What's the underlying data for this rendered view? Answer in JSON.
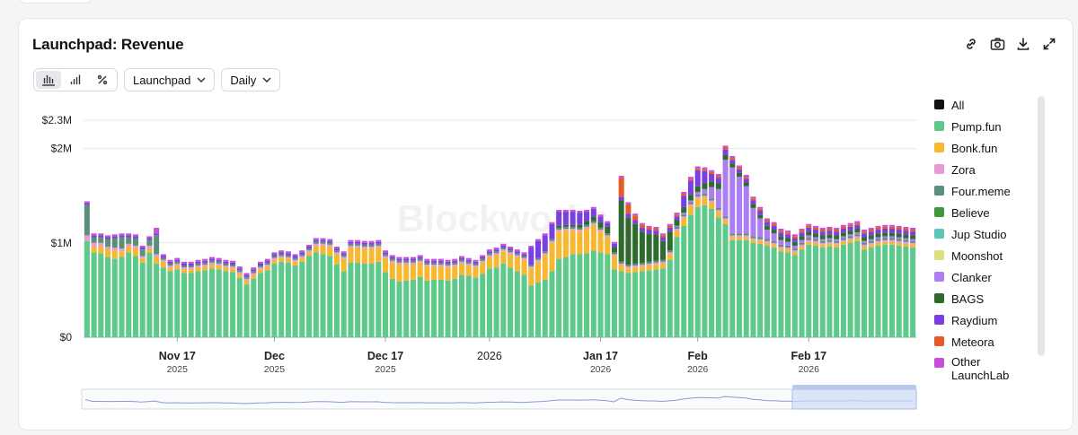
{
  "title": "Launchpad: Revenue",
  "watermark": "Blockworks",
  "actions": [
    {
      "name": "link-icon"
    },
    {
      "name": "camera-icon"
    },
    {
      "name": "download-icon"
    },
    {
      "name": "expand-icon"
    }
  ],
  "view_toggles": [
    {
      "name": "bar-stacked-icon",
      "active": true
    },
    {
      "name": "bar-icon",
      "active": false
    },
    {
      "name": "percent-icon",
      "active": false
    }
  ],
  "dropdowns": {
    "group": "Launchpad",
    "interval": "Daily"
  },
  "colors": {
    "pump": "#5dc98b",
    "bonk": "#f7b731",
    "zora": "#e79ad6",
    "four": "#5b8f79",
    "believe": "#3f9a3f",
    "jup": "#5bc7b9",
    "moonshot": "#dde07a",
    "clanker": "#ad7df2",
    "bags": "#2f6b2f",
    "raydium": "#7a3fe0",
    "meteora": "#e55a28",
    "other": "#c84fd8"
  },
  "chart_data": {
    "type": "bar",
    "stacked": true,
    "title": "Launchpad: Revenue",
    "y_ticks": [
      "$0",
      "$1M",
      "$2M",
      "$2.3M"
    ],
    "ylim": [
      0,
      2300000
    ],
    "x_ticks": [
      {
        "label": "Nov 17",
        "sub": "2025"
      },
      {
        "label": "Dec",
        "sub": "2025"
      },
      {
        "label": "Dec 17",
        "sub": "2025"
      },
      {
        "label": "2026",
        "sub": ""
      },
      {
        "label": "Jan 17",
        "sub": "2026"
      },
      {
        "label": "Feb",
        "sub": "2026"
      },
      {
        "label": "Feb 17",
        "sub": "2026"
      }
    ],
    "x_tick_days": [
      13,
      27,
      43,
      58,
      74,
      88,
      104
    ],
    "legend": [
      {
        "label": "All",
        "color": "#111111"
      },
      {
        "label": "Pump.fun",
        "color": "#5dc98b"
      },
      {
        "label": "Bonk.fun",
        "color": "#f7b731"
      },
      {
        "label": "Zora",
        "color": "#e79ad6"
      },
      {
        "label": "Four.meme",
        "color": "#5b8f79"
      },
      {
        "label": "Believe",
        "color": "#3f9a3f"
      },
      {
        "label": "Jup Studio",
        "color": "#5bc7b9"
      },
      {
        "label": "Moonshot",
        "color": "#dde07a"
      },
      {
        "label": "Clanker",
        "color": "#ad7df2"
      },
      {
        "label": "BAGS",
        "color": "#2f6b2f"
      },
      {
        "label": "Raydium",
        "color": "#7a3fe0"
      },
      {
        "label": "Meteora",
        "color": "#e55a28"
      },
      {
        "label": "Other LaunchLab",
        "color": "#c84fd8"
      }
    ],
    "series_keys": [
      "pump",
      "bonk",
      "zora",
      "four",
      "believe",
      "clanker",
      "bags",
      "raydium",
      "meteora",
      "other"
    ],
    "pump": [
      1020000,
      900000,
      890000,
      850000,
      830000,
      850000,
      900000,
      860000,
      790000,
      900000,
      780000,
      740000,
      700000,
      720000,
      680000,
      680000,
      700000,
      710000,
      730000,
      720000,
      700000,
      690000,
      630000,
      560000,
      620000,
      680000,
      710000,
      780000,
      800000,
      790000,
      760000,
      800000,
      860000,
      900000,
      880000,
      860000,
      770000,
      700000,
      790000,
      790000,
      780000,
      780000,
      800000,
      690000,
      620000,
      590000,
      600000,
      610000,
      640000,
      600000,
      610000,
      610000,
      600000,
      620000,
      660000,
      650000,
      630000,
      670000,
      730000,
      740000,
      780000,
      740000,
      700000,
      660000,
      550000,
      580000,
      610000,
      700000,
      830000,
      850000,
      880000,
      880000,
      890000,
      920000,
      900000,
      880000,
      720000,
      700000,
      680000,
      690000,
      700000,
      710000,
      720000,
      730000,
      820000,
      1060000,
      1180000,
      1300000,
      1380000,
      1400000,
      1360000,
      1270000,
      1200000,
      1030000,
      1030000,
      1030000,
      1000000,
      990000,
      970000,
      950000,
      910000,
      900000,
      870000,
      930000,
      980000,
      970000,
      950000,
      960000,
      950000,
      980000,
      1000000,
      1020000,
      930000,
      950000,
      970000,
      980000,
      980000,
      970000,
      960000,
      950000
    ],
    "bonk": [
      0,
      60000,
      70000,
      80000,
      90000,
      60000,
      60000,
      80000,
      50000,
      40000,
      70000,
      60000,
      40000,
      40000,
      40000,
      40000,
      40000,
      40000,
      40000,
      40000,
      40000,
      40000,
      40000,
      40000,
      40000,
      40000,
      40000,
      40000,
      40000,
      40000,
      40000,
      40000,
      40000,
      70000,
      90000,
      100000,
      110000,
      130000,
      160000,
      160000,
      160000,
      160000,
      150000,
      150000,
      170000,
      180000,
      170000,
      160000,
      150000,
      150000,
      140000,
      140000,
      140000,
      130000,
      120000,
      110000,
      110000,
      120000,
      120000,
      130000,
      130000,
      140000,
      150000,
      160000,
      180000,
      220000,
      260000,
      300000,
      290000,
      280000,
      250000,
      240000,
      260000,
      270000,
      220000,
      180000,
      140000,
      60000,
      50000,
      50000,
      50000,
      50000,
      50000,
      50000,
      60000,
      70000,
      80000,
      90000,
      90000,
      80000,
      70000,
      60000,
      40000,
      30000,
      30000,
      30000,
      30000,
      30000,
      30000,
      30000,
      30000,
      30000,
      30000,
      30000,
      30000,
      30000,
      30000,
      30000,
      30000,
      30000,
      30000,
      30000,
      30000,
      30000,
      30000,
      30000,
      30000,
      30000,
      30000,
      30000
    ],
    "zora": [
      60000,
      40000,
      40000,
      30000,
      30000,
      30000,
      30000,
      30000,
      20000,
      30000,
      30000,
      20000,
      20000,
      20000,
      20000,
      20000,
      20000,
      20000,
      20000,
      20000,
      20000,
      20000,
      20000,
      20000,
      20000,
      20000,
      20000,
      20000,
      20000,
      20000,
      20000,
      20000,
      20000,
      20000,
      20000,
      20000,
      20000,
      20000,
      20000,
      20000,
      20000,
      20000,
      20000,
      20000,
      20000,
      20000,
      20000,
      20000,
      20000,
      20000,
      20000,
      20000,
      20000,
      20000,
      20000,
      20000,
      20000,
      20000,
      20000,
      20000,
      20000,
      20000,
      20000,
      20000,
      20000,
      20000,
      20000,
      20000,
      20000,
      20000,
      20000,
      20000,
      20000,
      20000,
      20000,
      20000,
      20000,
      20000,
      20000,
      20000,
      20000,
      20000,
      20000,
      20000,
      20000,
      20000,
      20000,
      20000,
      20000,
      20000,
      20000,
      20000,
      20000,
      20000,
      20000,
      20000,
      20000,
      20000,
      20000,
      20000,
      20000,
      20000,
      20000,
      20000,
      20000,
      20000,
      20000,
      20000,
      20000,
      20000,
      20000,
      20000,
      20000,
      20000,
      20000,
      20000,
      20000,
      20000,
      20000,
      20000
    ],
    "four": [
      320000,
      60000,
      60000,
      80000,
      100000,
      120000,
      70000,
      80000,
      70000,
      60000,
      200000,
      20000,
      20000,
      20000,
      20000,
      20000,
      20000,
      20000,
      20000,
      20000,
      20000,
      20000,
      20000,
      20000,
      20000,
      20000,
      20000,
      20000,
      20000,
      20000,
      20000,
      20000,
      20000,
      20000,
      20000,
      20000,
      20000,
      20000,
      20000,
      20000,
      20000,
      20000,
      20000,
      20000,
      20000,
      20000,
      20000,
      20000,
      20000,
      20000,
      20000,
      20000,
      20000,
      20000,
      20000,
      20000,
      20000,
      20000,
      20000,
      20000,
      20000,
      20000,
      20000,
      20000,
      20000,
      20000,
      20000,
      20000,
      20000,
      20000,
      20000,
      20000,
      20000,
      20000,
      20000,
      20000,
      20000,
      20000,
      20000,
      20000,
      20000,
      20000,
      20000,
      20000,
      20000,
      20000,
      20000,
      20000,
      20000,
      20000,
      20000,
      20000,
      20000,
      20000,
      20000,
      20000,
      20000,
      20000,
      20000,
      20000,
      20000,
      20000,
      20000,
      20000,
      20000,
      20000,
      20000,
      20000,
      20000,
      20000,
      20000,
      20000,
      20000,
      20000,
      20000,
      20000,
      20000,
      20000,
      20000,
      20000
    ],
    "believe": [
      0,
      0,
      0,
      0,
      0,
      0,
      0,
      0,
      0,
      0,
      0,
      0,
      0,
      0,
      0,
      0,
      0,
      0,
      0,
      0,
      0,
      0,
      0,
      0,
      0,
      0,
      0,
      0,
      0,
      0,
      0,
      0,
      0,
      0,
      0,
      0,
      0,
      0,
      0,
      0,
      0,
      0,
      0,
      0,
      0,
      0,
      0,
      0,
      0,
      0,
      0,
      0,
      0,
      0,
      0,
      0,
      0,
      0,
      0,
      0,
      0,
      0,
      0,
      0,
      0,
      0,
      0,
      0,
      0,
      0,
      0,
      0,
      0,
      0,
      0,
      0,
      0,
      0,
      0,
      0,
      0,
      0,
      0,
      0,
      0,
      0,
      0,
      0,
      0,
      0,
      0,
      0,
      0,
      0,
      0,
      0,
      0,
      0,
      0,
      0,
      0,
      0,
      0,
      0,
      0,
      0,
      0,
      0,
      0,
      0,
      0,
      0,
      0,
      0,
      0,
      0,
      0,
      0,
      0,
      0
    ],
    "clanker": [
      0,
      0,
      0,
      0,
      0,
      0,
      0,
      0,
      0,
      0,
      0,
      0,
      0,
      0,
      0,
      0,
      0,
      0,
      0,
      0,
      0,
      0,
      0,
      0,
      0,
      0,
      0,
      0,
      0,
      0,
      0,
      0,
      0,
      0,
      0,
      0,
      0,
      0,
      0,
      0,
      0,
      0,
      0,
      0,
      0,
      0,
      0,
      0,
      0,
      0,
      0,
      0,
      0,
      0,
      0,
      0,
      0,
      0,
      0,
      0,
      0,
      0,
      0,
      0,
      0,
      0,
      0,
      0,
      0,
      0,
      0,
      0,
      0,
      0,
      0,
      0,
      0,
      0,
      0,
      0,
      0,
      0,
      0,
      0,
      0,
      10000,
      20000,
      20000,
      30000,
      50000,
      120000,
      200000,
      600000,
      700000,
      600000,
      500000,
      300000,
      200000,
      100000,
      80000,
      50000,
      40000,
      30000,
      30000,
      30000,
      20000,
      20000,
      20000,
      20000,
      20000,
      20000,
      20000,
      20000,
      20000,
      20000,
      20000,
      20000,
      20000,
      20000,
      20000
    ],
    "bags": [
      0,
      0,
      0,
      0,
      0,
      0,
      0,
      0,
      0,
      0,
      0,
      0,
      0,
      0,
      0,
      0,
      0,
      0,
      0,
      0,
      0,
      0,
      0,
      0,
      0,
      0,
      0,
      0,
      0,
      0,
      0,
      0,
      0,
      0,
      0,
      0,
      0,
      0,
      0,
      0,
      0,
      0,
      0,
      0,
      0,
      0,
      0,
      0,
      0,
      0,
      0,
      0,
      0,
      0,
      0,
      0,
      0,
      0,
      0,
      0,
      0,
      0,
      0,
      0,
      0,
      0,
      0,
      0,
      20000,
      20000,
      20000,
      30000,
      40000,
      50000,
      60000,
      70000,
      50000,
      650000,
      500000,
      420000,
      330000,
      300000,
      280000,
      200000,
      200000,
      60000,
      60000,
      60000,
      60000,
      60000,
      60000,
      60000,
      50000,
      40000,
      40000,
      40000,
      40000,
      40000,
      40000,
      40000,
      40000,
      40000,
      40000,
      40000,
      40000,
      40000,
      40000,
      40000,
      40000,
      40000,
      40000,
      40000,
      40000,
      40000,
      40000,
      40000,
      40000,
      40000,
      40000,
      40000
    ],
    "raydium": [
      20000,
      20000,
      20000,
      20000,
      20000,
      20000,
      20000,
      20000,
      20000,
      20000,
      20000,
      20000,
      20000,
      20000,
      20000,
      20000,
      20000,
      20000,
      20000,
      20000,
      20000,
      20000,
      20000,
      20000,
      20000,
      20000,
      20000,
      20000,
      20000,
      20000,
      20000,
      20000,
      20000,
      20000,
      20000,
      20000,
      20000,
      20000,
      20000,
      20000,
      20000,
      20000,
      20000,
      20000,
      20000,
      20000,
      20000,
      20000,
      20000,
      20000,
      20000,
      20000,
      20000,
      20000,
      20000,
      20000,
      20000,
      20000,
      20000,
      20000,
      20000,
      20000,
      20000,
      20000,
      180000,
      180000,
      170000,
      160000,
      150000,
      140000,
      140000,
      130000,
      100000,
      80000,
      60000,
      40000,
      40000,
      40000,
      40000,
      40000,
      40000,
      40000,
      40000,
      40000,
      40000,
      40000,
      120000,
      150000,
      170000,
      130000,
      80000,
      60000,
      60000,
      40000,
      40000,
      40000,
      40000,
      40000,
      40000,
      40000,
      40000,
      40000,
      40000,
      40000,
      40000,
      40000,
      40000,
      40000,
      40000,
      40000,
      40000,
      40000,
      40000,
      40000,
      40000,
      40000,
      40000,
      40000,
      40000,
      40000
    ],
    "meteora": [
      0,
      0,
      0,
      0,
      0,
      0,
      0,
      0,
      0,
      0,
      0,
      0,
      0,
      0,
      0,
      0,
      0,
      0,
      0,
      0,
      0,
      0,
      0,
      0,
      0,
      0,
      0,
      0,
      0,
      0,
      0,
      0,
      0,
      0,
      0,
      0,
      0,
      0,
      0,
      0,
      0,
      0,
      0,
      0,
      0,
      0,
      0,
      0,
      0,
      0,
      0,
      0,
      0,
      0,
      0,
      0,
      0,
      0,
      0,
      0,
      0,
      0,
      0,
      0,
      0,
      0,
      0,
      0,
      0,
      0,
      0,
      0,
      0,
      0,
      0,
      0,
      0,
      200000,
      100000,
      50000,
      30000,
      20000,
      20000,
      20000,
      20000,
      20000,
      20000,
      20000,
      20000,
      20000,
      20000,
      20000,
      20000,
      20000,
      20000,
      20000,
      20000,
      20000,
      20000,
      20000,
      20000,
      20000,
      20000,
      20000,
      20000,
      20000,
      20000,
      20000,
      20000,
      20000,
      20000,
      20000,
      20000,
      20000,
      20000,
      20000,
      20000,
      20000,
      20000,
      20000
    ],
    "other": [
      20000,
      20000,
      20000,
      20000,
      20000,
      20000,
      20000,
      20000,
      20000,
      20000,
      60000,
      20000,
      20000,
      20000,
      20000,
      20000,
      20000,
      20000,
      20000,
      20000,
      20000,
      20000,
      20000,
      20000,
      20000,
      20000,
      20000,
      20000,
      20000,
      20000,
      20000,
      20000,
      20000,
      20000,
      20000,
      20000,
      20000,
      20000,
      20000,
      20000,
      20000,
      20000,
      20000,
      20000,
      20000,
      20000,
      20000,
      20000,
      20000,
      20000,
      20000,
      20000,
      20000,
      20000,
      20000,
      20000,
      20000,
      20000,
      20000,
      20000,
      20000,
      20000,
      20000,
      20000,
      20000,
      20000,
      20000,
      20000,
      20000,
      20000,
      20000,
      20000,
      20000,
      20000,
      20000,
      20000,
      20000,
      20000,
      20000,
      20000,
      20000,
      20000,
      20000,
      20000,
      20000,
      20000,
      20000,
      20000,
      20000,
      20000,
      20000,
      20000,
      20000,
      20000,
      20000,
      20000,
      20000,
      20000,
      20000,
      20000,
      20000,
      20000,
      20000,
      20000,
      20000,
      20000,
      20000,
      20000,
      20000,
      20000,
      20000,
      20000,
      20000,
      20000,
      20000,
      20000,
      20000,
      20000,
      20000,
      20000
    ]
  }
}
